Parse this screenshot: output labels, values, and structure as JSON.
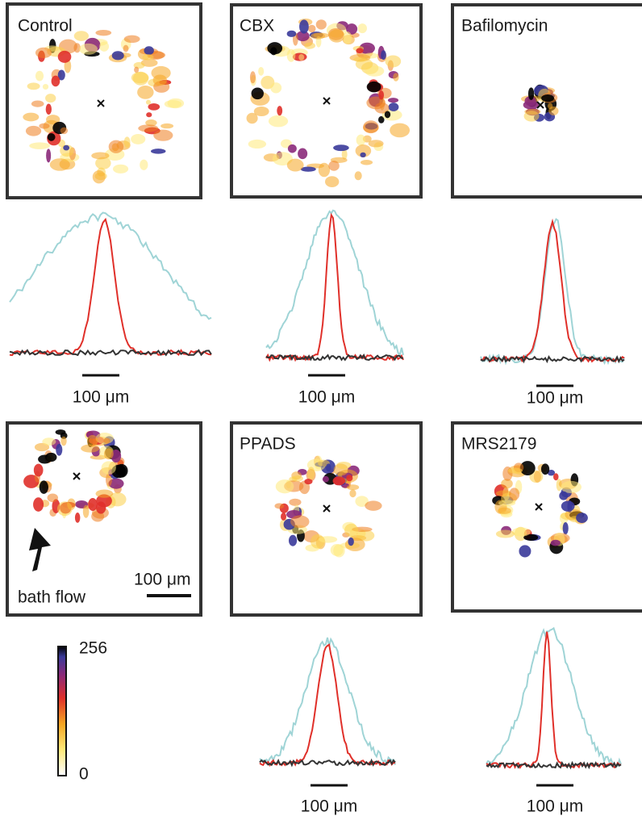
{
  "panels": [
    {
      "label": "Control"
    },
    {
      "label": "CBX"
    },
    {
      "label": "Bafilomycin"
    },
    {
      "annotation": "bath flow",
      "scale_bar": "100 μm"
    },
    {
      "label": "PPADS"
    },
    {
      "label": "MRS2179"
    }
  ],
  "profiles": [
    {
      "scale_bar": "100 μm"
    },
    {
      "scale_bar": "100 μm"
    },
    {
      "scale_bar": "100 μm"
    },
    {
      "scale_bar": "100 μm"
    },
    {
      "scale_bar": "100 μm"
    }
  ],
  "colorbar": {
    "max": 256,
    "min": 0
  }
}
